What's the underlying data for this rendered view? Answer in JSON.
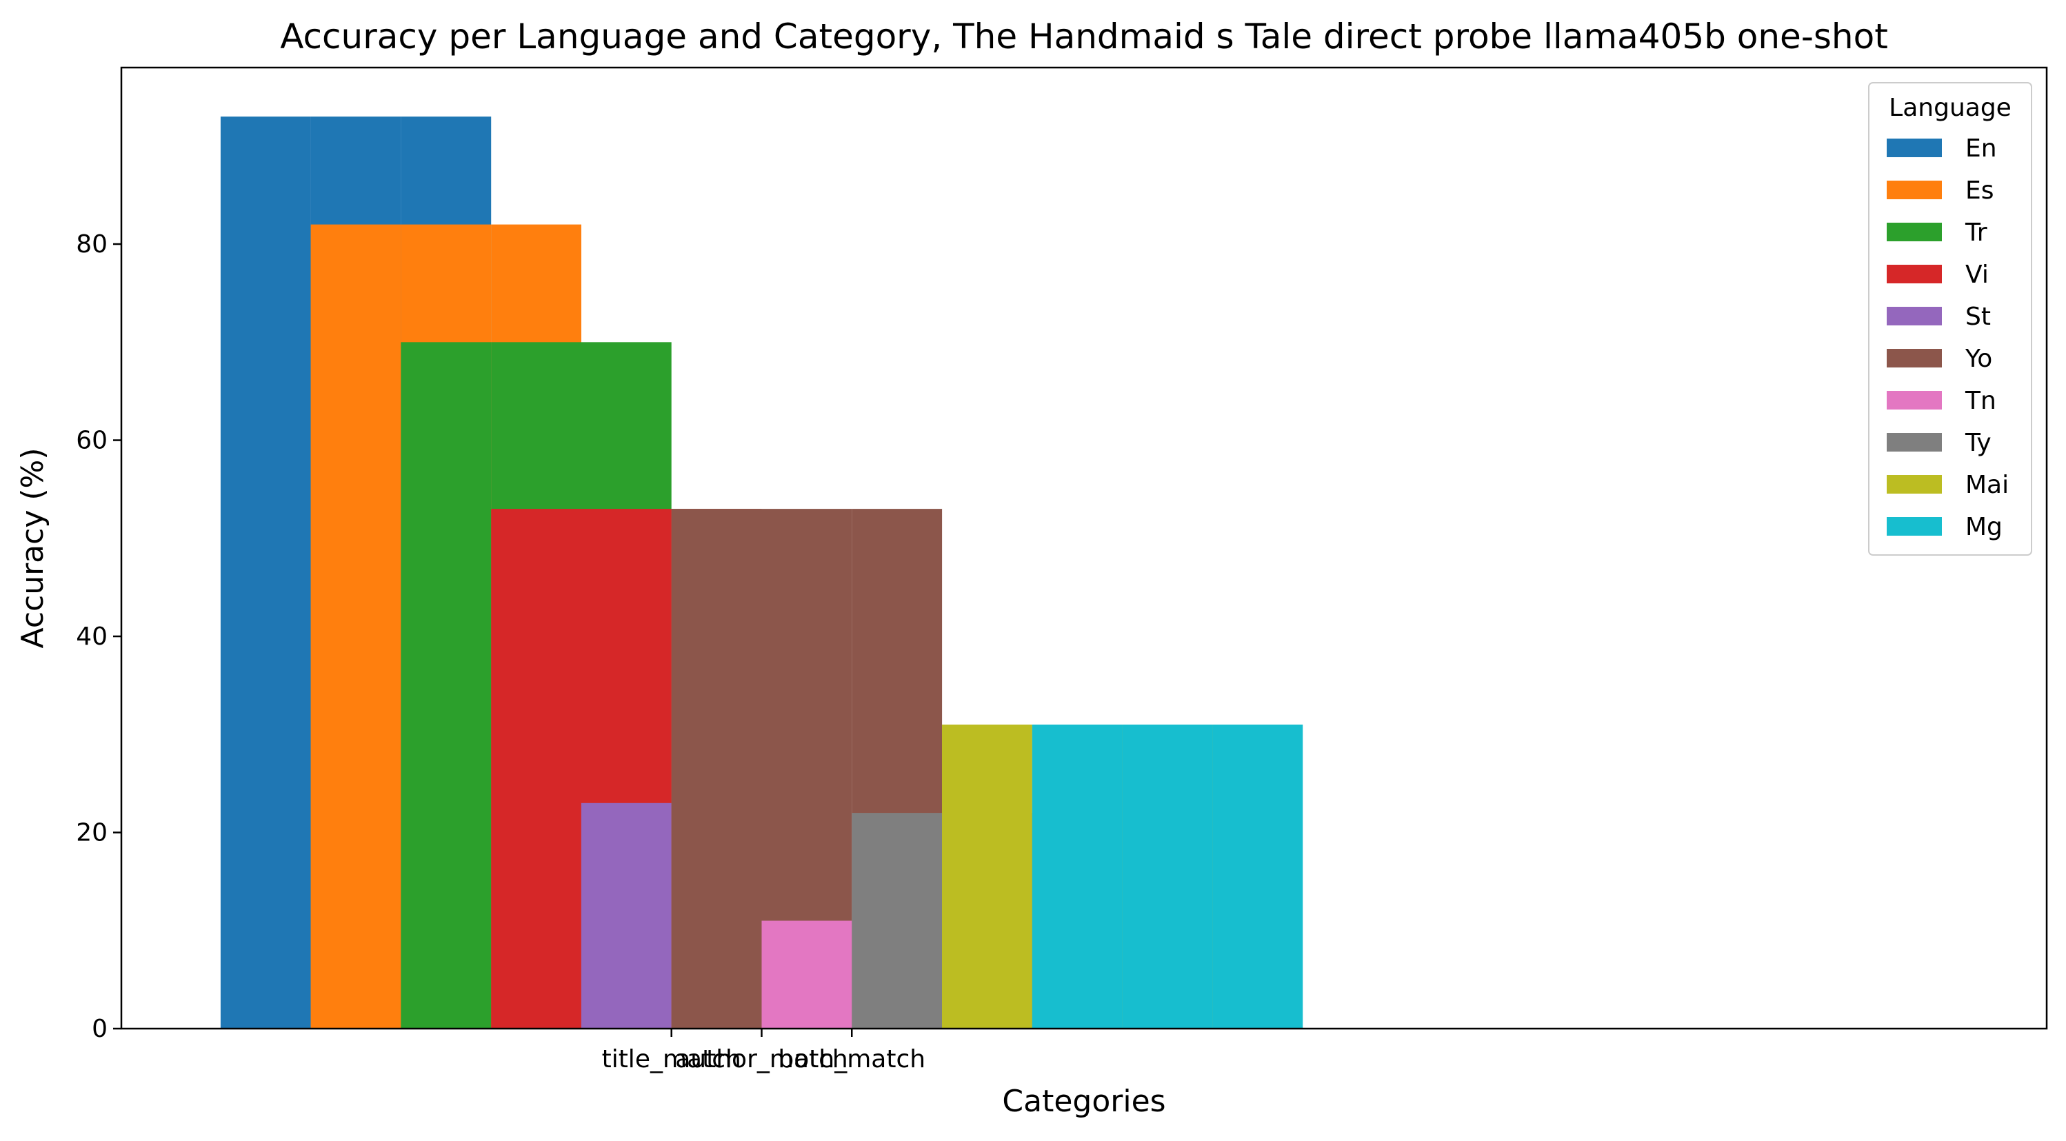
{
  "chart_data": {
    "type": "bar",
    "title": "Accuracy per Language and Category, The Handmaid s Tale direct probe llama405b one-shot",
    "xlabel": "Categories",
    "ylabel": "Accuracy (%)",
    "ylim": [
      0,
      98
    ],
    "yticks": [
      0,
      20,
      40,
      60,
      80
    ],
    "categories": [
      "title_match",
      "author_match",
      "both_match"
    ],
    "bar_slots": 20,
    "grid": false,
    "legend": {
      "title": "Language",
      "placement": "top-right"
    },
    "series": [
      {
        "name": "En",
        "color": "#1f77b4",
        "values": [
          93,
          93,
          93
        ]
      },
      {
        "name": "Es",
        "color": "#ff7f0e",
        "values": [
          82,
          82,
          82
        ]
      },
      {
        "name": "Tr",
        "color": "#2ca02c",
        "values": [
          70,
          70,
          70
        ]
      },
      {
        "name": "Vi",
        "color": "#d62728",
        "values": [
          53,
          53,
          53
        ]
      },
      {
        "name": "St",
        "color": "#9467bd",
        "values": [
          23,
          0,
          0
        ]
      },
      {
        "name": "Yo",
        "color": "#8c564b",
        "values": [
          53,
          53,
          53
        ]
      },
      {
        "name": "Tn",
        "color": "#e377c2",
        "values": [
          11,
          11,
          11
        ]
      },
      {
        "name": "Ty",
        "color": "#7f7f7f",
        "values": [
          22,
          22,
          22
        ]
      },
      {
        "name": "Mai",
        "color": "#bcbd22",
        "values": [
          31,
          31,
          31
        ]
      },
      {
        "name": "Mg",
        "color": "#17becf",
        "values": [
          31,
          31,
          31
        ]
      }
    ]
  }
}
